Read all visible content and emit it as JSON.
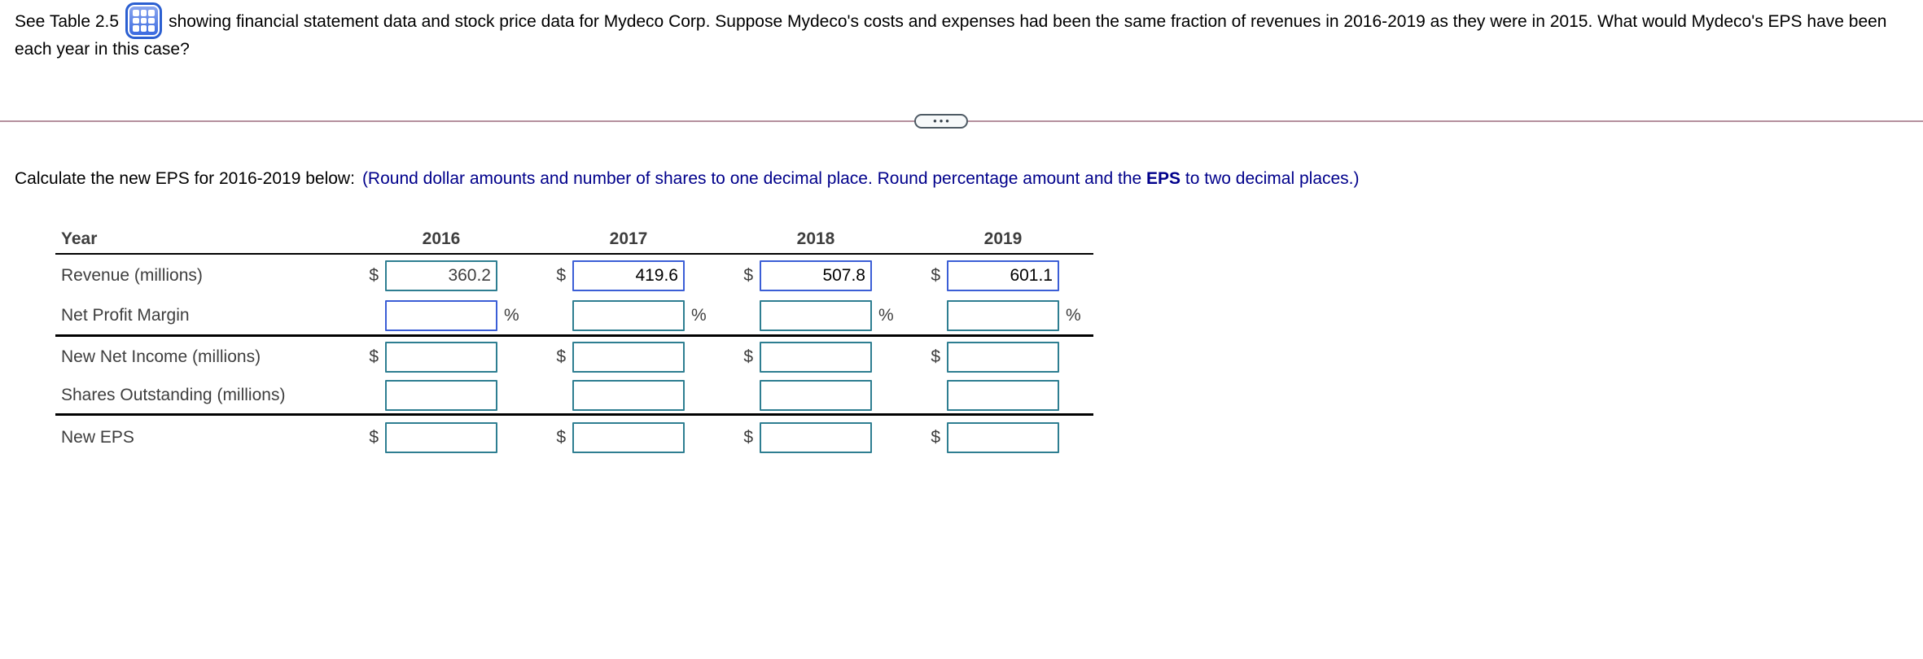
{
  "question": {
    "part1": "See Table 2.5",
    "icon": "table-icon",
    "part2": "showing financial statement data and stock price data for Mydeco Corp. Suppose Mydeco's costs and expenses had been the same fraction of revenues in 2016-2019 as they were in 2015. What would Mydeco's EPS have been each year in this case?"
  },
  "divider": {
    "ellipsis": "•••"
  },
  "instruction": {
    "black": "Calculate the new EPS for 2016-2019 below:",
    "blue_before": "(Round dollar amounts and number of shares to one decimal place. Round percentage amount and the ",
    "blue_bold": "EPS",
    "blue_after": " to two decimal places.)"
  },
  "table": {
    "header": {
      "label": "Year",
      "years": [
        "2016",
        "2017",
        "2018",
        "2019"
      ]
    },
    "symbols": {
      "dollar": "$",
      "percent": "%"
    },
    "rows": [
      {
        "label": "Revenue (millions)",
        "prefix": "$",
        "values": [
          "360.2",
          "419.6",
          "507.8",
          "601.1"
        ]
      },
      {
        "label": "Net Profit Margin",
        "suffix": "%",
        "values": [
          "",
          "",
          "",
          ""
        ]
      },
      {
        "label": "New Net Income (millions)",
        "prefix": "$",
        "values": [
          "",
          "",
          "",
          ""
        ]
      },
      {
        "label": "Shares Outstanding (millions)",
        "values": [
          "",
          "",
          "",
          ""
        ]
      },
      {
        "label": "New EPS",
        "prefix": "$",
        "values": [
          "",
          "",
          "",
          ""
        ]
      }
    ]
  },
  "colors": {
    "input_border_teal": "#2e7e91",
    "input_border_blue": "#3b5ed6",
    "instruction_blue": "#00008b",
    "divider_pink": "#b5909e",
    "icon_blue": "#2b5fd1",
    "table_text_gray": "#3e3e3e",
    "rule_black": "#000000"
  }
}
